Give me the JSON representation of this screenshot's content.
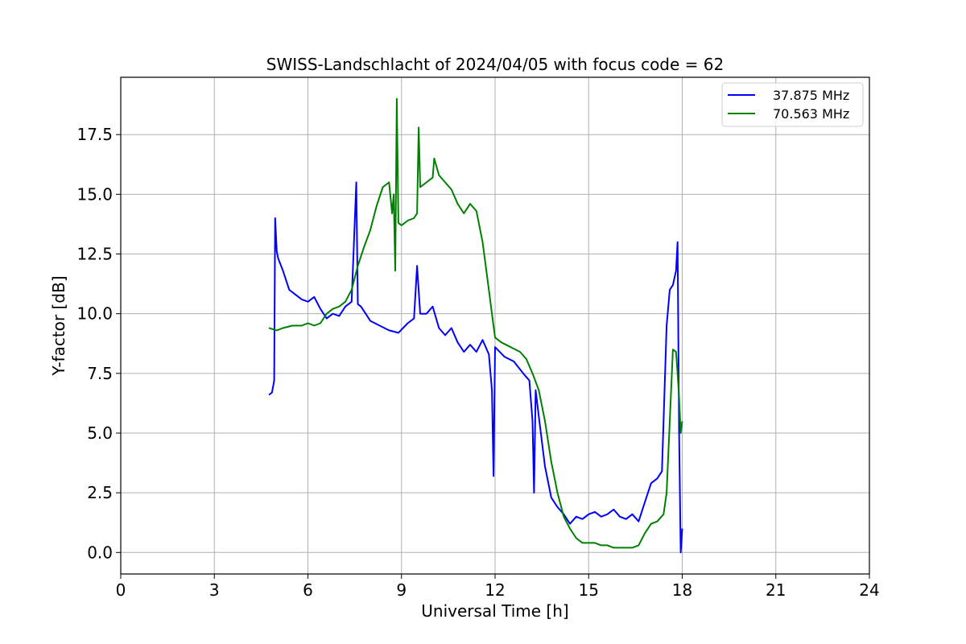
{
  "chart_data": {
    "type": "line",
    "title": "SWISS-Landschlacht of 2024/04/05 with focus code = 62",
    "xlabel": "Universal Time [h]",
    "ylabel": "Y-factor [dB]",
    "xlim": [
      0,
      24
    ],
    "ylim": [
      -0.9,
      19.9
    ],
    "xticks": [
      0,
      3,
      6,
      9,
      12,
      15,
      18,
      21,
      24
    ],
    "xtick_labels": [
      "0",
      "3",
      "6",
      "9",
      "12",
      "15",
      "18",
      "21",
      "24"
    ],
    "yticks": [
      0.0,
      2.5,
      5.0,
      7.5,
      10.0,
      12.5,
      15.0,
      17.5
    ],
    "ytick_labels": [
      "0.0",
      "2.5",
      "5.0",
      "7.5",
      "10.0",
      "12.5",
      "15.0",
      "17.5"
    ],
    "grid": true,
    "legend_position": "top-right",
    "series": [
      {
        "name": "37.875 MHz",
        "color": "#0000ff",
        "x": [
          4.75,
          4.85,
          4.92,
          4.95,
          5.0,
          5.05,
          5.2,
          5.4,
          5.6,
          5.8,
          6.0,
          6.2,
          6.4,
          6.6,
          6.8,
          7.0,
          7.2,
          7.4,
          7.55,
          7.6,
          7.7,
          7.8,
          8.0,
          8.3,
          8.6,
          8.9,
          9.2,
          9.4,
          9.5,
          9.6,
          9.8,
          10.0,
          10.2,
          10.4,
          10.6,
          10.8,
          11.0,
          11.2,
          11.4,
          11.6,
          11.8,
          11.9,
          11.95,
          12.0,
          12.3,
          12.6,
          12.9,
          13.1,
          13.2,
          13.25,
          13.3,
          13.4,
          13.6,
          13.8,
          14.0,
          14.2,
          14.4,
          14.6,
          14.8,
          15.0,
          15.2,
          15.4,
          15.6,
          15.8,
          16.0,
          16.2,
          16.4,
          16.6,
          16.8,
          17.0,
          17.2,
          17.35,
          17.5,
          17.6,
          17.7,
          17.8,
          17.85,
          17.9,
          17.95,
          18.0
        ],
        "y": [
          6.6,
          6.7,
          7.2,
          14.0,
          12.6,
          12.3,
          11.8,
          11.0,
          10.8,
          10.6,
          10.5,
          10.7,
          10.2,
          9.8,
          10.0,
          9.9,
          10.3,
          10.5,
          15.5,
          10.4,
          10.3,
          10.1,
          9.7,
          9.5,
          9.3,
          9.2,
          9.6,
          9.8,
          12.0,
          10.0,
          10.0,
          10.3,
          9.4,
          9.1,
          9.4,
          8.8,
          8.4,
          8.7,
          8.4,
          8.9,
          8.3,
          6.8,
          3.2,
          8.6,
          8.2,
          8.0,
          7.5,
          7.2,
          5.5,
          2.5,
          6.8,
          5.7,
          3.6,
          2.3,
          1.9,
          1.6,
          1.2,
          1.5,
          1.4,
          1.6,
          1.7,
          1.5,
          1.6,
          1.8,
          1.5,
          1.4,
          1.6,
          1.3,
          2.1,
          2.9,
          3.1,
          3.4,
          9.5,
          11.0,
          11.2,
          11.8,
          13.0,
          5.0,
          0.0,
          1.0
        ]
      },
      {
        "name": "70.563 MHz",
        "color": "#008000",
        "x": [
          4.75,
          5.0,
          5.2,
          5.5,
          5.8,
          6.0,
          6.2,
          6.4,
          6.6,
          6.8,
          7.0,
          7.2,
          7.4,
          7.6,
          7.8,
          8.0,
          8.2,
          8.4,
          8.6,
          8.7,
          8.75,
          8.8,
          8.85,
          8.9,
          9.0,
          9.2,
          9.4,
          9.5,
          9.55,
          9.6,
          9.8,
          10.0,
          10.05,
          10.2,
          10.4,
          10.6,
          10.8,
          11.0,
          11.2,
          11.4,
          11.6,
          11.8,
          11.9,
          12.0,
          12.2,
          12.5,
          12.8,
          13.0,
          13.2,
          13.4,
          13.6,
          13.8,
          14.0,
          14.2,
          14.4,
          14.6,
          14.8,
          15.0,
          15.2,
          15.4,
          15.6,
          15.8,
          16.0,
          16.2,
          16.4,
          16.6,
          16.8,
          17.0,
          17.2,
          17.4,
          17.5,
          17.6,
          17.7,
          17.8,
          17.85,
          17.9,
          17.95,
          18.0
        ],
        "y": [
          9.4,
          9.3,
          9.4,
          9.5,
          9.5,
          9.6,
          9.5,
          9.6,
          10.0,
          10.2,
          10.3,
          10.5,
          11.0,
          12.0,
          12.8,
          13.5,
          14.5,
          15.3,
          15.5,
          14.2,
          15.0,
          11.8,
          19.0,
          13.8,
          13.7,
          13.9,
          14.0,
          14.2,
          17.8,
          15.3,
          15.5,
          15.7,
          16.5,
          15.8,
          15.5,
          15.2,
          14.6,
          14.2,
          14.6,
          14.3,
          13.0,
          11.0,
          10.0,
          9.0,
          8.8,
          8.6,
          8.4,
          8.1,
          7.5,
          6.8,
          5.5,
          3.8,
          2.5,
          1.5,
          1.0,
          0.6,
          0.4,
          0.4,
          0.4,
          0.3,
          0.3,
          0.2,
          0.2,
          0.2,
          0.2,
          0.3,
          0.8,
          1.2,
          1.3,
          1.6,
          2.5,
          5.5,
          8.5,
          8.4,
          7.5,
          6.5,
          5.0,
          5.5
        ]
      }
    ]
  }
}
